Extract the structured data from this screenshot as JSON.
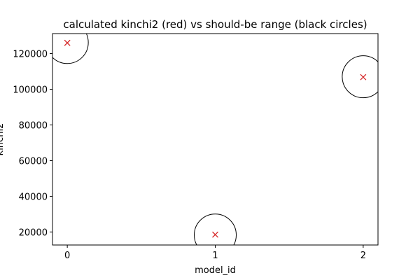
{
  "chart_data": {
    "type": "scatter",
    "title": "calculated kinchi2 (red) vs should-be range (black circles)",
    "xlabel": "model_id",
    "ylabel": "kinchi2",
    "xlim": [
      -0.1,
      2.1
    ],
    "ylim": [
      12700,
      131200
    ],
    "xticks": [
      0,
      1,
      2
    ],
    "yticks": [
      20000,
      40000,
      60000,
      80000,
      100000,
      120000
    ],
    "grid": false,
    "series": [
      {
        "marker": "x",
        "color": "#d62728",
        "x": [
          0,
          1,
          2
        ],
        "y": [
          126000,
          18500,
          106800
        ]
      },
      {
        "marker": "o",
        "marker_fill": "none",
        "color": "#000000",
        "x": [
          0,
          1,
          2
        ],
        "y": [
          126200,
          18300,
          107000
        ]
      }
    ]
  }
}
